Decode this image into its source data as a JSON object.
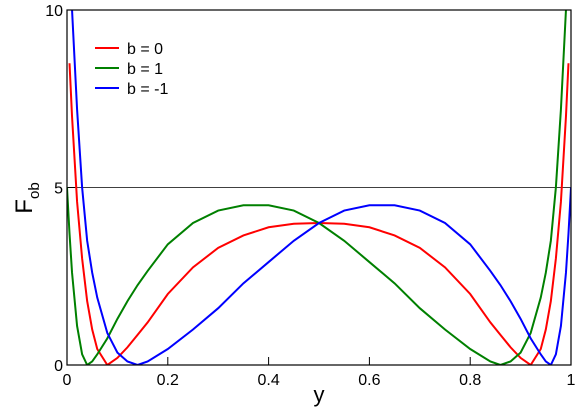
{
  "chart_data": {
    "type": "line",
    "xlabel": "y",
    "ylabel": "F",
    "ylabel_sub": "ob",
    "x": [
      0,
      0.005,
      0.01,
      0.02,
      0.03,
      0.04,
      0.05,
      0.06,
      0.08,
      0.1,
      0.12,
      0.14,
      0.16,
      0.2,
      0.25,
      0.3,
      0.35,
      0.4,
      0.45,
      0.5,
      0.55,
      0.6,
      0.65,
      0.7,
      0.75,
      0.8,
      0.84,
      0.86,
      0.88,
      0.9,
      0.92,
      0.94,
      0.95,
      0.96,
      0.97,
      0.98,
      0.99,
      0.995,
      1
    ],
    "series": [
      {
        "name": "b = 0",
        "color": "#ff0000",
        "values": [
          null,
          8.5,
          7,
          4.6,
          3.0,
          1.8,
          1.0,
          0.45,
          0,
          0.2,
          0.5,
          0.85,
          1.2,
          2.0,
          2.75,
          3.3,
          3.65,
          3.88,
          3.98,
          4.0,
          3.98,
          3.88,
          3.65,
          3.3,
          2.75,
          2.0,
          1.2,
          0.85,
          0.5,
          0.2,
          0,
          0.45,
          1.0,
          1.8,
          3.0,
          4.6,
          7,
          8.5,
          null
        ]
      },
      {
        "name": "b = 1",
        "color": "#008000",
        "values": [
          5,
          3.7,
          2.6,
          1.1,
          0.3,
          0,
          0.1,
          0.3,
          0.75,
          1.3,
          1.8,
          2.25,
          2.65,
          3.4,
          4.0,
          4.35,
          4.5,
          4.5,
          4.35,
          4.0,
          3.5,
          2.9,
          2.3,
          1.6,
          1.0,
          0.45,
          0.1,
          0,
          0.1,
          0.35,
          0.9,
          1.9,
          2.6,
          3.5,
          5,
          7.2,
          10,
          null,
          null
        ]
      },
      {
        "name": "b = -1",
        "color": "#0000ff",
        "values": [
          null,
          null,
          10,
          7.2,
          5,
          3.5,
          2.6,
          1.9,
          0.9,
          0.35,
          0.1,
          0,
          0.1,
          0.45,
          1.0,
          1.6,
          2.3,
          2.9,
          3.5,
          4.0,
          4.35,
          4.5,
          4.5,
          4.35,
          4.0,
          3.4,
          2.65,
          2.25,
          1.8,
          1.3,
          0.75,
          0.3,
          0.1,
          0,
          0.3,
          1.1,
          2.6,
          3.7,
          5
        ]
      }
    ],
    "xlim": [
      0,
      1
    ],
    "xticks": [
      0,
      0.2,
      0.4,
      0.6,
      0.8,
      1
    ],
    "ylim": [
      0,
      10
    ],
    "yticks": [
      0,
      5,
      10
    ],
    "grid": true,
    "legend": "upper left"
  }
}
